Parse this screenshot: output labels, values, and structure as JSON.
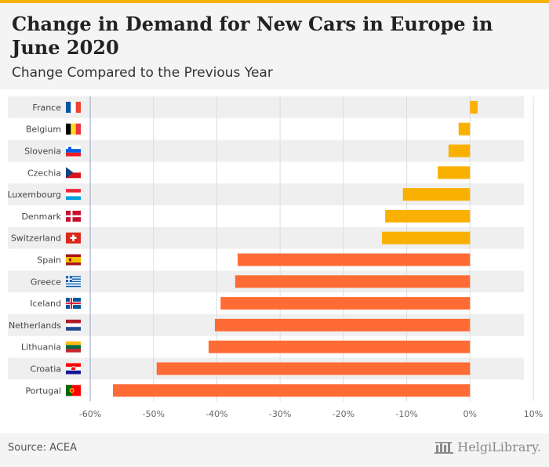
{
  "header": {
    "title": "Change in Demand for New Cars in Europe in June 2020",
    "subtitle": "Change Compared to the Previous Year"
  },
  "footer": {
    "source": "Source: ACEA",
    "brand": "HelgiLibrary."
  },
  "colors": {
    "accent_bar": "#f9b000",
    "positive_small": "#f9b000",
    "large_negative": "#ff6b35",
    "stripe": "#efefef"
  },
  "chart_data": {
    "type": "bar",
    "orientation": "horizontal",
    "categories": [
      "France",
      "Belgium",
      "Slovenia",
      "Czechia",
      "Luxembourg",
      "Denmark",
      "Switzerland",
      "Spain",
      "Greece",
      "Iceland",
      "Netherlands",
      "Lithuania",
      "Croatia",
      "Portugal"
    ],
    "values": [
      1.2,
      -1.8,
      -3.4,
      -5.1,
      -10.6,
      -13.4,
      -13.9,
      -36.7,
      -37.1,
      -39.4,
      -40.3,
      -41.3,
      -49.5,
      -56.4
    ],
    "colors": [
      "#f9b000",
      "#f9b000",
      "#f9b000",
      "#f9b000",
      "#f9b000",
      "#f9b000",
      "#f9b000",
      "#ff6b35",
      "#ff6b35",
      "#ff6b35",
      "#ff6b35",
      "#ff6b35",
      "#ff6b35",
      "#ff6b35"
    ],
    "flags": [
      "france-flag-icon",
      "belgium-flag-icon",
      "slovenia-flag-icon",
      "czechia-flag-icon",
      "luxembourg-flag-icon",
      "denmark-flag-icon",
      "switzerland-flag-icon",
      "spain-flag-icon",
      "greece-flag-icon",
      "iceland-flag-icon",
      "netherlands-flag-icon",
      "lithuania-flag-icon",
      "croatia-flag-icon",
      "portugal-flag-icon"
    ],
    "xlim": [
      -60,
      10
    ],
    "xticks": [
      -60,
      -50,
      -40,
      -30,
      -20,
      -10,
      0,
      10
    ],
    "xtick_labels": [
      "-60%",
      "-50%",
      "-40%",
      "-30%",
      "-20%",
      "-10%",
      "0%",
      "10%"
    ],
    "title": "Change in Demand for New Cars in Europe in June 2020",
    "subtitle": "Change Compared to the Previous Year",
    "xlabel": "",
    "ylabel": "",
    "grid": true
  }
}
